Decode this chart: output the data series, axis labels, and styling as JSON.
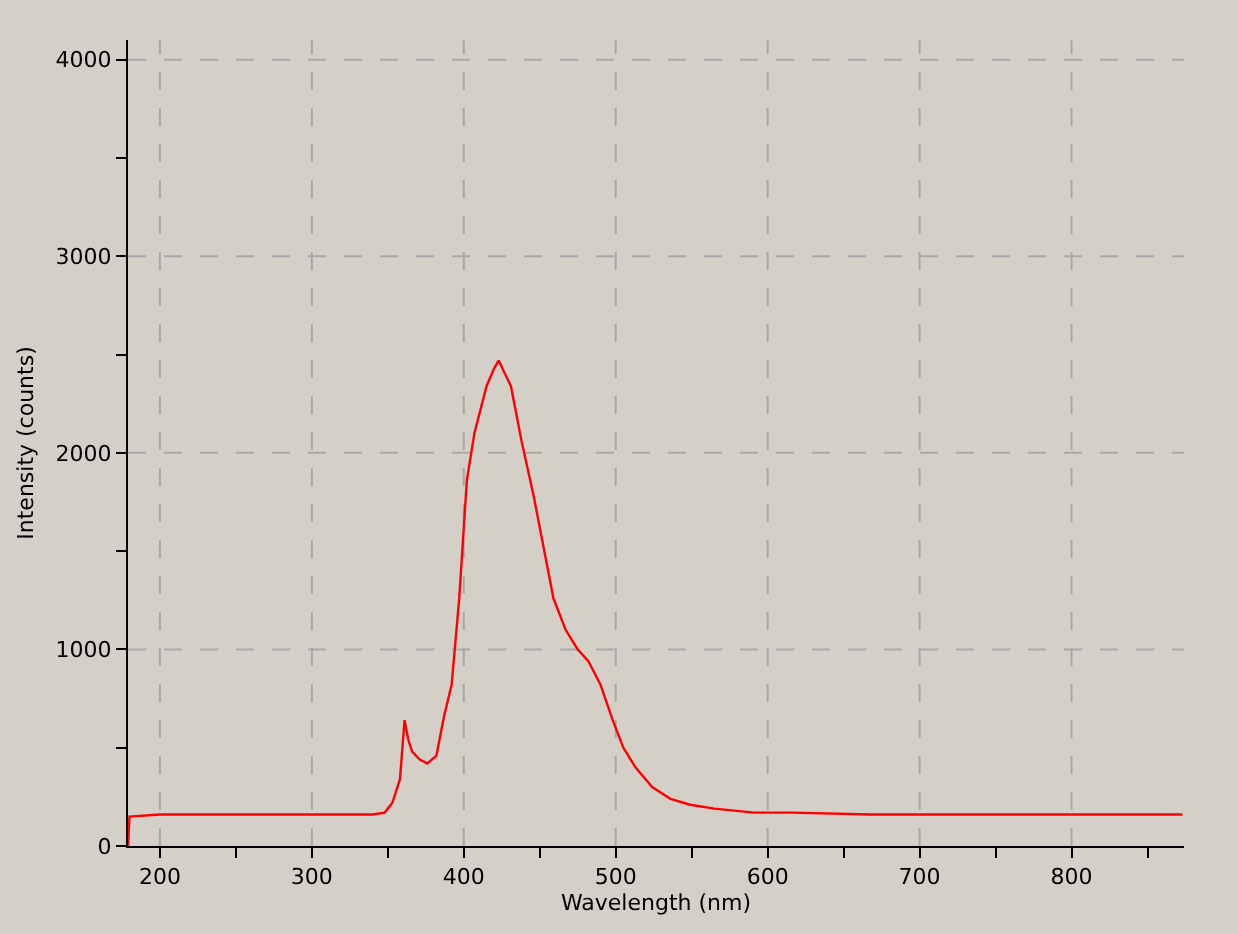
{
  "chart_data": {
    "type": "line",
    "xlabel": "Wavelength (nm)",
    "ylabel": "Intensity (counts)",
    "x": [
      179,
      180,
      200,
      250,
      300,
      340,
      348,
      353,
      358,
      361,
      363.5,
      366,
      371,
      376,
      382,
      387,
      392,
      397,
      402,
      407,
      415,
      420,
      423,
      426,
      431,
      438,
      446,
      454,
      459,
      467,
      475,
      482,
      490,
      498,
      505,
      513,
      524,
      536,
      549,
      565,
      591,
      616,
      668,
      720,
      800,
      873
    ],
    "series": [
      {
        "color": "#ff0000",
        "values": [
          0,
          150,
          160,
          160,
          160,
          160,
          170,
          220,
          340,
          640,
          540,
          480,
          440,
          420,
          460,
          660,
          820,
          1260,
          1860,
          2100,
          2340,
          2430,
          2470,
          2420,
          2340,
          2060,
          1780,
          1460,
          1260,
          1100,
          1000,
          940,
          820,
          640,
          500,
          400,
          300,
          240,
          210,
          190,
          170,
          170,
          160,
          160,
          160,
          160
        ]
      }
    ],
    "xlim": [
      179,
      874
    ],
    "xticks": [
      200,
      {
        "value": 250,
        "label": null
      },
      300,
      {
        "value": 350,
        "label": null
      },
      400,
      {
        "value": 450,
        "label": null
      },
      500,
      {
        "value": 550,
        "label": null
      },
      600,
      {
        "value": 650,
        "label": null
      },
      700,
      {
        "value": 750,
        "label": null
      },
      800,
      {
        "value": 850,
        "label": null
      }
    ],
    "ylim": [
      0,
      4100
    ],
    "yticks": [
      0,
      {
        "value": 500,
        "label": null
      },
      1000,
      {
        "value": 1500,
        "label": null
      },
      2000,
      {
        "value": 2500,
        "label": null
      },
      3000,
      {
        "value": 3500,
        "label": null
      },
      4000
    ],
    "grid": true,
    "marker": "none",
    "line_style": "solid"
  }
}
